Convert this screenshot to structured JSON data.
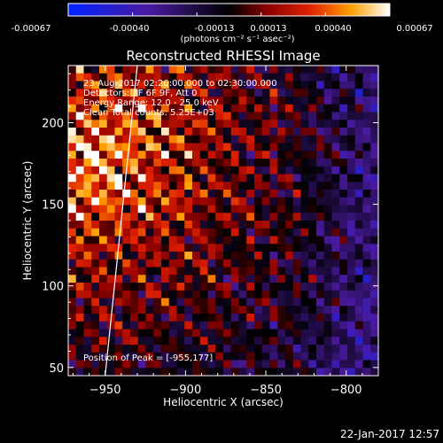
{
  "colorbar": {
    "tick_labels": [
      "-0.00067",
      "-0.00040",
      "-0.00013",
      "0.00013",
      "0.00040",
      "0.00067"
    ],
    "units_label": "(photons cm⁻² s⁻¹ asec⁻²)",
    "range": [
      -0.00067,
      0.00067
    ],
    "stops": [
      {
        "v": 0.0,
        "c": "#0022ff"
      },
      {
        "v": 0.25,
        "c": "#4a1aa0"
      },
      {
        "v": 0.5,
        "c": "#000000"
      },
      {
        "v": 0.62,
        "c": "#8a0000"
      },
      {
        "v": 0.75,
        "c": "#e02000"
      },
      {
        "v": 0.88,
        "c": "#ffa000"
      },
      {
        "v": 1.0,
        "c": "#ffffff"
      }
    ]
  },
  "annotations": {
    "time_range": "23-Aug-2017 02:20:00.000 to 02:30:00.000",
    "detectors": "Detectors: 3F 6F 9F, Att 0",
    "energy_range": "Energy Range: 12.0 - 25.0 keV",
    "method_counts": "Clean    Total counts: 5.25E+03",
    "peak_position": "Position of Peak = [-955,177]"
  },
  "footer": {
    "timestamp": "22-Jan-2017 12:57"
  },
  "chart_data": {
    "type": "heatmap",
    "title": "Reconstructed RHESSI Image",
    "xlabel": "Heliocentric X (arcsec)",
    "ylabel": "Heliocentric Y (arcsec)",
    "xlim": [
      -973,
      -780
    ],
    "ylim": [
      45,
      235
    ],
    "x_ticks": [
      -950,
      -900,
      -850,
      -800
    ],
    "x_tick_labels": [
      "−950",
      "−900",
      "−850",
      "−800"
    ],
    "y_ticks": [
      50,
      100,
      150,
      200
    ],
    "y_tick_labels": [
      "50",
      "100",
      "150",
      "200"
    ],
    "value_range": [
      -0.00067,
      0.00067
    ],
    "peak": [
      -955,
      177
    ],
    "limb_line": [
      [
        -950,
        45
      ],
      [
        -930,
        235
      ]
    ]
  }
}
